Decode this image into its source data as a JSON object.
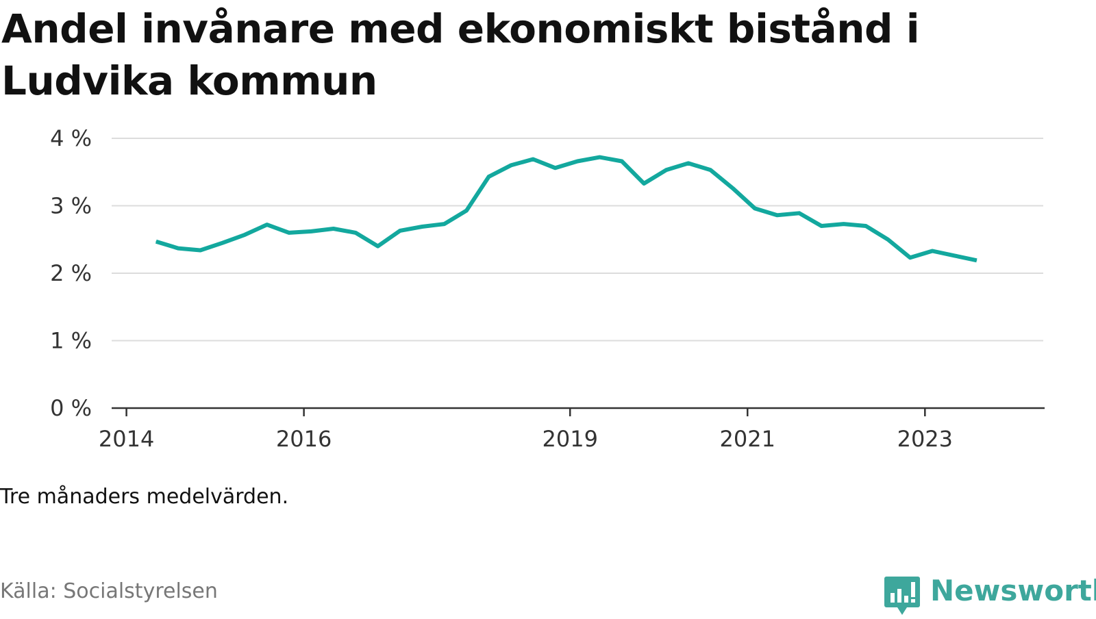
{
  "title": "Andel invånare med ekonomiskt bistånd i Ludvika kommun",
  "note": "Tre månaders medelvärden.",
  "source": "Källa: Socialstyrelsen",
  "brand": {
    "name": "Newsworthy",
    "color": "#3ea79c",
    "icon": "newsworthy-logo-icon"
  },
  "chart_data": {
    "type": "line",
    "title": "Andel invånare med ekonomiskt bistånd i Ludvika kommun",
    "xlabel": "",
    "ylabel": "",
    "ylim": [
      0,
      4
    ],
    "grid": true,
    "line_color": "#13a89e",
    "y_ticks": [
      {
        "value": 0,
        "label": "0 %"
      },
      {
        "value": 1,
        "label": "1 %"
      },
      {
        "value": 2,
        "label": "2 %"
      },
      {
        "value": 3,
        "label": "3 %"
      },
      {
        "value": 4,
        "label": "4 %"
      }
    ],
    "x_ticks": [
      {
        "value": "2014-01",
        "label": "2014"
      },
      {
        "value": "2016-01",
        "label": "2016"
      },
      {
        "value": "2019-01",
        "label": "2019"
      },
      {
        "value": "2021-01",
        "label": "2021"
      },
      {
        "value": "2023-01",
        "label": "2023"
      }
    ],
    "x_range": [
      "2013-11",
      "2024-05"
    ],
    "series": [
      {
        "name": "",
        "points": [
          {
            "x": "2014-05",
            "y": 2.47
          },
          {
            "x": "2014-08",
            "y": 2.37
          },
          {
            "x": "2014-11",
            "y": 2.34
          },
          {
            "x": "2015-02",
            "y": 2.45
          },
          {
            "x": "2015-05",
            "y": 2.57
          },
          {
            "x": "2015-08",
            "y": 2.72
          },
          {
            "x": "2015-11",
            "y": 2.6
          },
          {
            "x": "2016-02",
            "y": 2.62
          },
          {
            "x": "2016-05",
            "y": 2.66
          },
          {
            "x": "2016-08",
            "y": 2.6
          },
          {
            "x": "2016-11",
            "y": 2.4
          },
          {
            "x": "2017-02",
            "y": 2.63
          },
          {
            "x": "2017-05",
            "y": 2.69
          },
          {
            "x": "2017-08",
            "y": 2.73
          },
          {
            "x": "2017-11",
            "y": 2.93
          },
          {
            "x": "2018-02",
            "y": 3.43
          },
          {
            "x": "2018-05",
            "y": 3.6
          },
          {
            "x": "2018-08",
            "y": 3.69
          },
          {
            "x": "2018-11",
            "y": 3.56
          },
          {
            "x": "2019-02",
            "y": 3.66
          },
          {
            "x": "2019-05",
            "y": 3.72
          },
          {
            "x": "2019-08",
            "y": 3.66
          },
          {
            "x": "2019-11",
            "y": 3.33
          },
          {
            "x": "2020-02",
            "y": 3.53
          },
          {
            "x": "2020-05",
            "y": 3.63
          },
          {
            "x": "2020-08",
            "y": 3.53
          },
          {
            "x": "2020-11",
            "y": 3.26
          },
          {
            "x": "2021-02",
            "y": 2.96
          },
          {
            "x": "2021-05",
            "y": 2.86
          },
          {
            "x": "2021-08",
            "y": 2.89
          },
          {
            "x": "2021-11",
            "y": 2.7
          },
          {
            "x": "2022-02",
            "y": 2.73
          },
          {
            "x": "2022-05",
            "y": 2.7
          },
          {
            "x": "2022-08",
            "y": 2.5
          },
          {
            "x": "2022-11",
            "y": 2.23
          },
          {
            "x": "2023-02",
            "y": 2.33
          },
          {
            "x": "2023-05",
            "y": 2.26
          },
          {
            "x": "2023-08",
            "y": 2.19
          }
        ]
      }
    ]
  }
}
